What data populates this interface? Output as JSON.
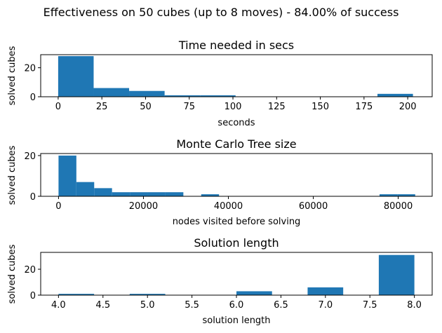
{
  "figure_title": "Effectiveness on 50 cubes (up to 8 moves) - 84.00% of success",
  "colors": {
    "bar": "#1f77b4",
    "axis": "#000000",
    "background": "#ffffff"
  },
  "chart_data": [
    {
      "type": "bar",
      "title": "Time needed in secs",
      "xlabel": "seconds",
      "ylabel": "solved cubes",
      "xlim": [
        -10,
        214
      ],
      "ylim": [
        0,
        29
      ],
      "xticks": [
        0,
        25,
        50,
        75,
        100,
        125,
        150,
        175,
        200
      ],
      "yticks": [
        0,
        20
      ],
      "bins": [
        {
          "start": 0,
          "end": 20.3,
          "count": 28
        },
        {
          "start": 20.3,
          "end": 40.6,
          "count": 6
        },
        {
          "start": 40.6,
          "end": 60.9,
          "count": 4
        },
        {
          "start": 60.9,
          "end": 81.2,
          "count": 1
        },
        {
          "start": 81.2,
          "end": 101.5,
          "count": 1
        },
        {
          "start": 101.5,
          "end": 121.8,
          "count": 0
        },
        {
          "start": 121.8,
          "end": 142.1,
          "count": 0
        },
        {
          "start": 142.1,
          "end": 162.4,
          "count": 0
        },
        {
          "start": 162.4,
          "end": 182.7,
          "count": 0
        },
        {
          "start": 182.7,
          "end": 203.0,
          "count": 2
        }
      ]
    },
    {
      "type": "bar",
      "title": "Monte Carlo Tree size",
      "xlabel": "nodes visited before solving",
      "ylabel": "solved cubes",
      "xlim": [
        -4200,
        88000
      ],
      "ylim": [
        0,
        21
      ],
      "xticks": [
        0,
        20000,
        40000,
        60000,
        80000
      ],
      "yticks": [
        0,
        20
      ],
      "bins": [
        {
          "start": 0,
          "end": 4200,
          "count": 20
        },
        {
          "start": 4200,
          "end": 8400,
          "count": 7
        },
        {
          "start": 8400,
          "end": 12600,
          "count": 4
        },
        {
          "start": 12600,
          "end": 16800,
          "count": 2
        },
        {
          "start": 16800,
          "end": 21000,
          "count": 2
        },
        {
          "start": 21000,
          "end": 25200,
          "count": 2
        },
        {
          "start": 25200,
          "end": 29400,
          "count": 2
        },
        {
          "start": 29400,
          "end": 33600,
          "count": 0
        },
        {
          "start": 33600,
          "end": 37800,
          "count": 1
        },
        {
          "start": 37800,
          "end": 42000,
          "count": 0
        },
        {
          "start": 42000,
          "end": 46200,
          "count": 0
        },
        {
          "start": 46200,
          "end": 50400,
          "count": 0
        },
        {
          "start": 50400,
          "end": 54600,
          "count": 0
        },
        {
          "start": 54600,
          "end": 58800,
          "count": 0
        },
        {
          "start": 58800,
          "end": 63000,
          "count": 0
        },
        {
          "start": 63000,
          "end": 67200,
          "count": 0
        },
        {
          "start": 67200,
          "end": 71400,
          "count": 0
        },
        {
          "start": 71400,
          "end": 75600,
          "count": 0
        },
        {
          "start": 75600,
          "end": 79800,
          "count": 1
        },
        {
          "start": 79800,
          "end": 84000,
          "count": 1
        }
      ]
    },
    {
      "type": "bar",
      "title": "Solution length",
      "xlabel": "solution length",
      "ylabel": "solved cubes",
      "xlim": [
        3.8,
        8.2
      ],
      "ylim": [
        0,
        33
      ],
      "xticks": [
        "4.0",
        "4.5",
        "5.0",
        "5.5",
        "6.0",
        "6.5",
        "7.0",
        "7.5",
        "8.0"
      ],
      "yticks": [
        0,
        20
      ],
      "bins": [
        {
          "start": 4.0,
          "end": 4.4,
          "count": 1
        },
        {
          "start": 4.4,
          "end": 4.8,
          "count": 0
        },
        {
          "start": 4.8,
          "end": 5.2,
          "count": 1
        },
        {
          "start": 5.2,
          "end": 5.6,
          "count": 0
        },
        {
          "start": 5.6,
          "end": 6.0,
          "count": 0
        },
        {
          "start": 6.0,
          "end": 6.4,
          "count": 3
        },
        {
          "start": 6.4,
          "end": 6.8,
          "count": 0
        },
        {
          "start": 6.8,
          "end": 7.2,
          "count": 6
        },
        {
          "start": 7.2,
          "end": 7.6,
          "count": 0
        },
        {
          "start": 7.6,
          "end": 8.0,
          "count": 31
        }
      ]
    }
  ]
}
